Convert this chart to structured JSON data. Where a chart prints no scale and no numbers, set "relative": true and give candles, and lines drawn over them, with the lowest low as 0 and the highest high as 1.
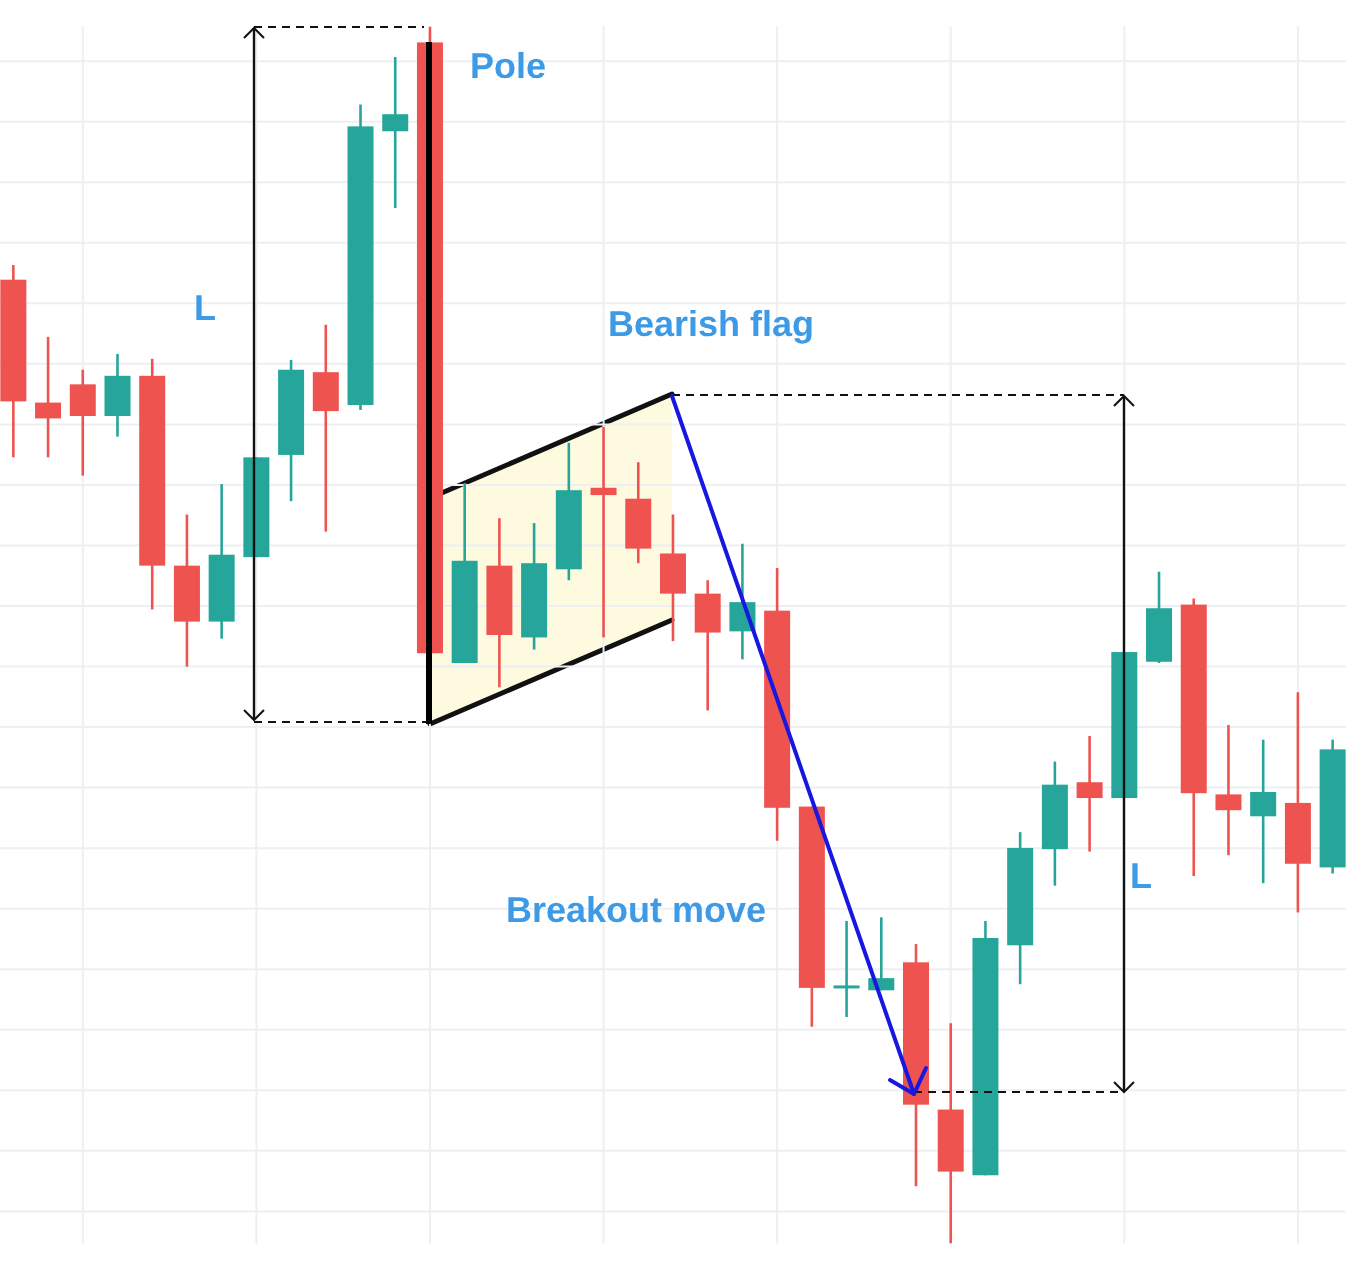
{
  "chart_data": {
    "type": "candlestick",
    "relative": true,
    "grid": true,
    "categories": [
      null,
      null,
      null,
      null,
      null,
      null,
      null,
      null,
      null,
      null,
      null,
      null,
      null,
      null,
      null,
      null,
      null,
      null,
      null,
      null,
      null,
      null,
      null,
      null,
      null,
      null,
      null,
      null,
      null,
      null,
      null,
      null,
      null,
      null,
      null,
      null,
      null,
      null,
      null
    ],
    "ohlc": [
      [
        0.792,
        0.804,
        0.646,
        0.692
      ],
      [
        0.691,
        0.745,
        0.646,
        0.678
      ],
      [
        0.706,
        0.718,
        0.631,
        0.68
      ],
      [
        0.68,
        0.731,
        0.663,
        0.713
      ],
      [
        0.713,
        0.727,
        0.521,
        0.557
      ],
      [
        0.557,
        0.599,
        0.474,
        0.511
      ],
      [
        0.511,
        0.624,
        0.497,
        0.566
      ],
      [
        0.564,
        0.646,
        0.564,
        0.646
      ],
      [
        0.648,
        0.726,
        0.61,
        0.718
      ],
      [
        0.716,
        0.755,
        0.585,
        0.684
      ],
      [
        0.689,
        0.936,
        0.685,
        0.918
      ],
      [
        0.914,
        0.975,
        0.851,
        0.928
      ],
      [
        0.987,
        1,
        0.485,
        0.485
      ],
      [
        0.477,
        0.625,
        0.477,
        0.561
      ],
      [
        0.557,
        0.596,
        0.457,
        0.5
      ],
      [
        0.498,
        0.592,
        0.488,
        0.559
      ],
      [
        0.554,
        0.658,
        0.545,
        0.619
      ],
      [
        0.621,
        0.671,
        0.498,
        0.615
      ],
      [
        0.612,
        0.642,
        0.559,
        0.571
      ],
      [
        0.567,
        0.599,
        0.495,
        0.534
      ],
      [
        0.534,
        0.545,
        0.438,
        0.502
      ],
      [
        0.503,
        0.575,
        0.48,
        0.527
      ],
      [
        0.52,
        0.555,
        0.331,
        0.358
      ],
      [
        0.359,
        0.359,
        0.178,
        0.21
      ],
      [
        0.212,
        0.265,
        0.186,
        0.212
      ],
      [
        0.208,
        0.268,
        0.208,
        0.218
      ],
      [
        0.231,
        0.246,
        0.047,
        0.114
      ],
      [
        0.11,
        0.181,
        0,
        0.059
      ],
      [
        0.056,
        0.265,
        0.056,
        0.251
      ],
      [
        0.245,
        0.338,
        0.213,
        0.325
      ],
      [
        0.324,
        0.396,
        0.294,
        0.377
      ],
      [
        0.379,
        0.417,
        0.322,
        0.366
      ],
      [
        0.366,
        0.486,
        0.366,
        0.486
      ],
      [
        0.478,
        0.552,
        0.477,
        0.522
      ],
      [
        0.525,
        0.53,
        0.302,
        0.37
      ],
      [
        0.369,
        0.426,
        0.319,
        0.356
      ],
      [
        0.351,
        0.414,
        0.296,
        0.371
      ],
      [
        0.362,
        0.453,
        0.272,
        0.312
      ],
      [
        0.309,
        0.414,
        0.304,
        0.406
      ]
    ],
    "colors": [
      "#ef5350",
      "#ef5350",
      "#ef5350",
      "#26a69a",
      "#ef5350",
      "#ef5350",
      "#26a69a",
      "#26a69a",
      "#26a69a",
      "#ef5350",
      "#26a69a",
      "#26a69a",
      "#ef5350",
      "#26a69a",
      "#ef5350",
      "#26a69a",
      "#26a69a",
      "#ef5350",
      "#ef5350",
      "#ef5350",
      "#ef5350",
      "#26a69a",
      "#ef5350",
      "#ef5350",
      "#26a69a",
      "#26a69a",
      "#ef5350",
      "#ef5350",
      "#26a69a",
      "#26a69a",
      "#26a69a",
      "#ef5350",
      "#26a69a",
      "#26a69a",
      "#ef5350",
      "#ef5350",
      "#26a69a",
      "#ef5350",
      "#26a69a"
    ],
    "annotations": [
      "Pole",
      "L",
      "Bearish flag",
      "Breakout move",
      "L"
    ]
  }
}
